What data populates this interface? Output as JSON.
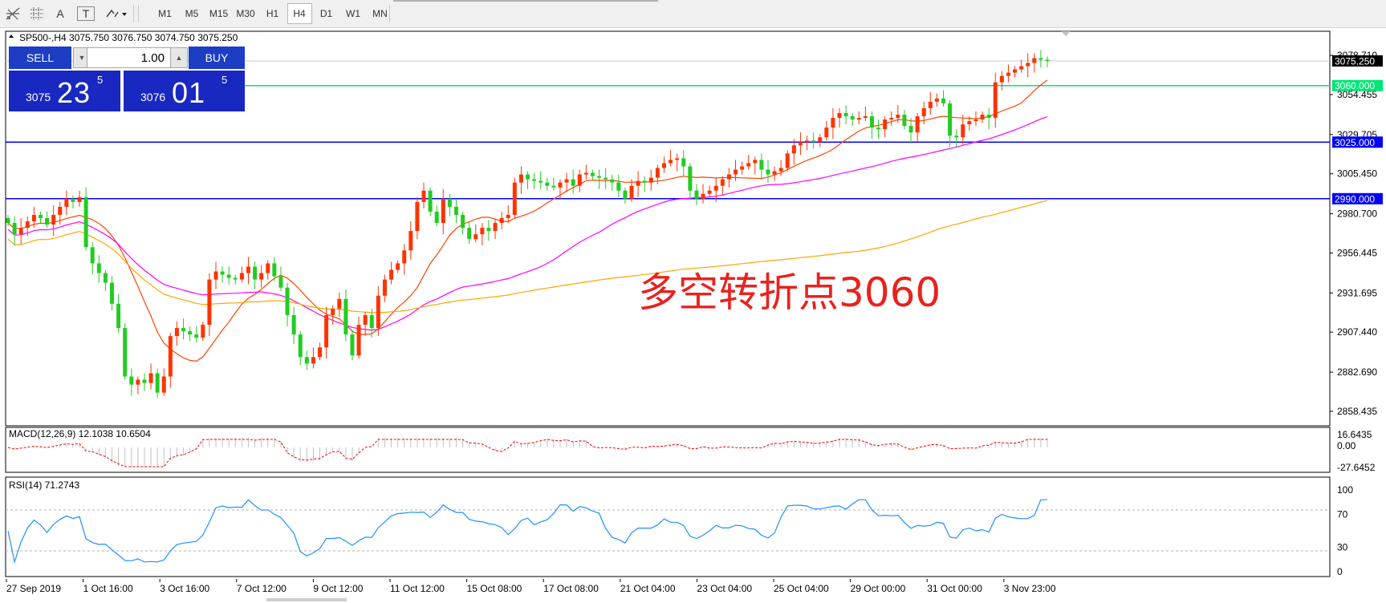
{
  "toolbar": {
    "icons": [
      "crosshair-icon",
      "grid-icon",
      "text-icon",
      "text-label-icon",
      "arrows-icon"
    ],
    "text_tool": "A",
    "label_tool": "T",
    "timeframes": [
      "M1",
      "M5",
      "M15",
      "M30",
      "H1",
      "H4",
      "D1",
      "W1",
      "MN"
    ],
    "active_timeframe": "H4"
  },
  "chart": {
    "header": "SP500-,H4  3075.750 3076.750 3074.750 3075.250",
    "annotation": "多空转折点3060",
    "price_axis": [
      "3078.710",
      "3054.455",
      "3029.705",
      "3005.450",
      "2980.700",
      "2956.445",
      "2931.695",
      "2907.440",
      "2882.690",
      "2858.435"
    ],
    "price_tags": [
      {
        "label": "3075.250",
        "price": 3075.25,
        "color": "#000000"
      },
      {
        "label": "3060.000",
        "price": 3060.0,
        "color": "#00e676"
      },
      {
        "label": "3025.000",
        "price": 3025.0,
        "color": "#0000ff"
      },
      {
        "label": "2990.000",
        "price": 2990.0,
        "color": "#0000ff"
      }
    ],
    "x_labels": [
      "27 Sep 2019",
      "1 Oct 16:00",
      "3 Oct 16:00",
      "7 Oct 12:00",
      "9 Oct 12:00",
      "11 Oct 12:00",
      "15 Oct 08:00",
      "17 Oct 08:00",
      "21 Oct 04:00",
      "23 Oct 04:00",
      "25 Oct 04:00",
      "29 Oct 00:00",
      "31 Oct 00:00",
      "3 Nov 23:00"
    ],
    "colors": {
      "bull": "#ff3300",
      "bear": "#22cc22",
      "ma_fast": "#ff4500",
      "ma_mid": "#ff00ff",
      "ma_slow": "#ffa500",
      "resistance": "#00e676",
      "support": "#0000ff",
      "macd": "#c0c0c0",
      "macd_signal": "#ff0000",
      "rsi": "#1e90ff"
    }
  },
  "trade_panel": {
    "sell_label": "SELL",
    "buy_label": "BUY",
    "lot": "1.00",
    "sell_price_small": "3075",
    "sell_price_big": "23",
    "sell_price_sup": "5",
    "buy_price_small": "3076",
    "buy_price_big": "01",
    "buy_price_sup": "5"
  },
  "macd": {
    "header": "MACD(12,26,9) 12.1038 10.6504",
    "axis": [
      "16.6435",
      "0.00",
      "-27.6452"
    ]
  },
  "rsi": {
    "header": "RSI(14) 71.2743",
    "axis": [
      "100",
      "70",
      "30",
      "0"
    ]
  },
  "chart_data": {
    "type": "candlestick",
    "symbol": "SP500-",
    "timeframe": "H4",
    "ohlc_close": [
      2975,
      2968,
      2972,
      2976,
      2980,
      2978,
      2974,
      2980,
      2985,
      2990,
      2988,
      2991,
      2960,
      2950,
      2944,
      2938,
      2925,
      2910,
      2880,
      2875,
      2878,
      2876,
      2882,
      2870,
      2880,
      2905,
      2910,
      2908,
      2906,
      2904,
      2912,
      2940,
      2945,
      2943,
      2941,
      2940,
      2944,
      2948,
      2940,
      2944,
      2950,
      2942,
      2935,
      2918,
      2906,
      2892,
      2888,
      2892,
      2898,
      2918,
      2922,
      2928,
      2906,
      2893,
      2912,
      2918,
      2910,
      2930,
      2940,
      2946,
      2950,
      2958,
      2970,
      2988,
      2995,
      2982,
      2975,
      2990,
      2985,
      2980,
      2972,
      2965,
      2968,
      2972,
      2970,
      2975,
      2978,
      2980,
      3000,
      3005,
      3002,
      3001,
      3000,
      2998,
      2997,
      3000,
      3002,
      2998,
      3005,
      3006,
      3004,
      3003,
      3002,
      3000,
      2995,
      2990,
      2998,
      3001,
      3000,
      3003,
      3009,
      3012,
      3014,
      3015,
      3010,
      2995,
      2990,
      2993,
      2995,
      2998,
      3002,
      3005,
      3008,
      3010,
      3012,
      3014,
      3008,
      3005,
      3007,
      3009,
      3018,
      3023,
      3025,
      3026,
      3025,
      3028,
      3034,
      3040,
      3043,
      3041,
      3039,
      3040,
      3041,
      3034,
      3033,
      3039,
      3040,
      3042,
      3035,
      3031,
      3041,
      3046,
      3050,
      3052,
      3049,
      3029,
      3028,
      3036,
      3038,
      3039,
      3042,
      3040,
      3062,
      3066,
      3068,
      3070,
      3072,
      3074,
      3077,
      3076,
      3075.25
    ],
    "horizontal_levels": [
      3060,
      3025,
      2990
    ],
    "ylim": [
      2850,
      3085
    ]
  }
}
